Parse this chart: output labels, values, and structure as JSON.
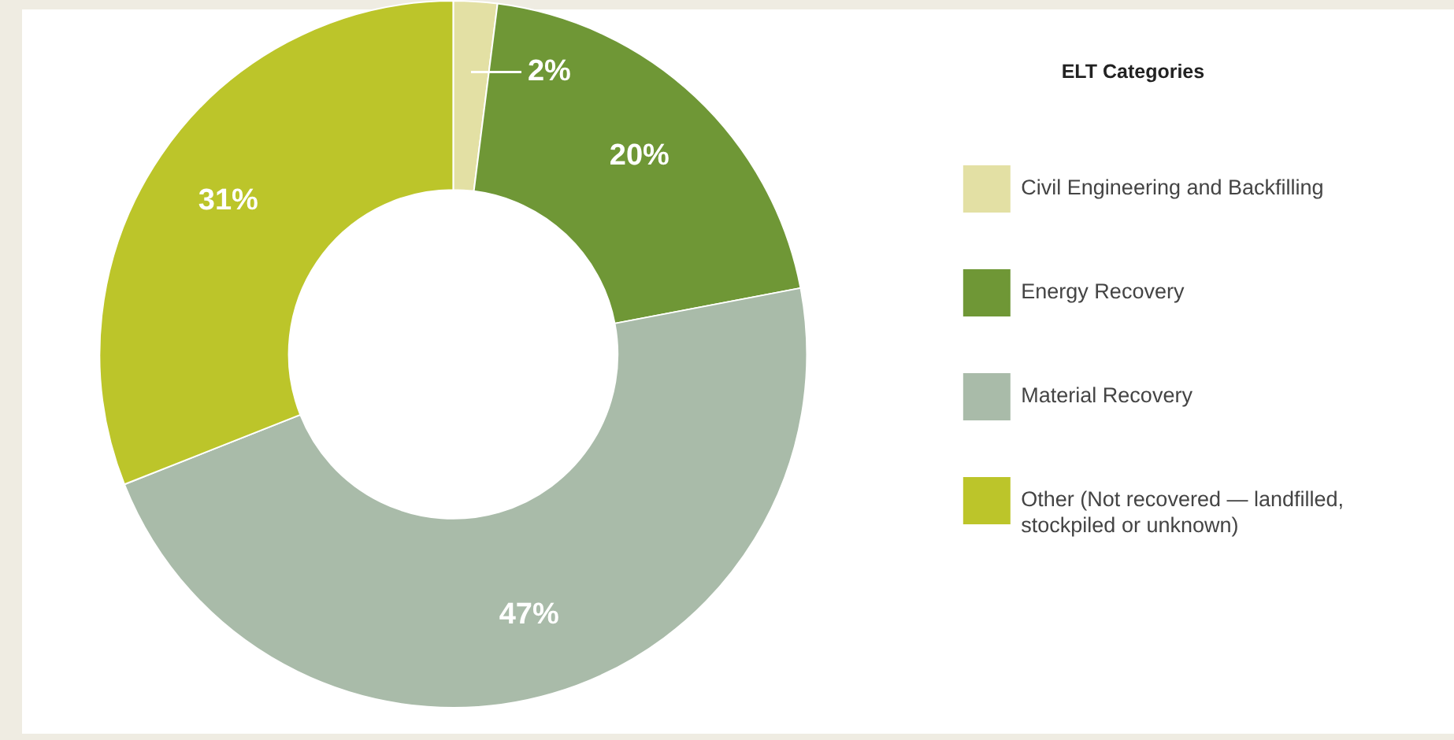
{
  "chart_data": {
    "type": "donut",
    "legend_title": "ELT Categories",
    "categories": [
      "Civil Engineering and Backfilling",
      "Energy Recovery",
      "Material Recovery",
      "Other (Not recovered — landfilled, stockpiled or unknown)"
    ],
    "values": [
      2,
      20,
      47,
      31
    ],
    "colors": [
      "#e3e0a4",
      "#6f9736",
      "#a9bba9",
      "#bcc52a"
    ],
    "value_labels": [
      "2%",
      "20%",
      "47%",
      "31%"
    ],
    "legend": "right"
  }
}
